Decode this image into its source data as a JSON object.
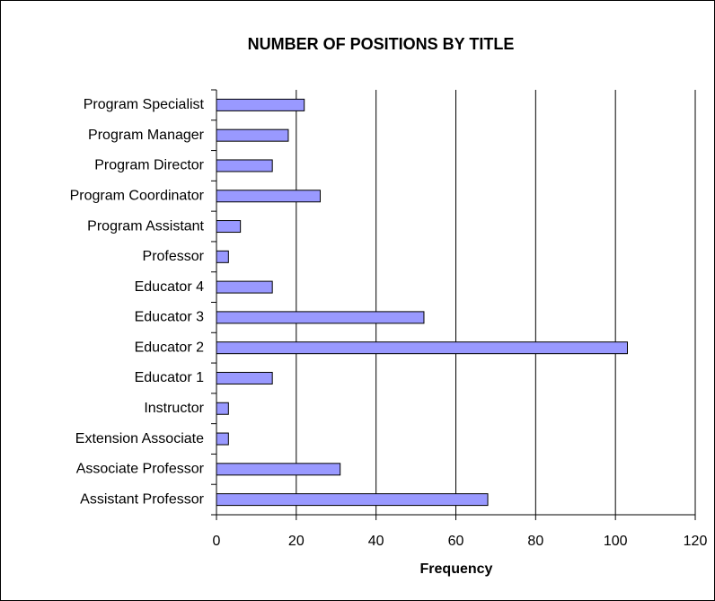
{
  "chart_data": {
    "type": "hbar",
    "title": "NUMBER OF POSITIONS BY TITLE",
    "x_label": "Frequency",
    "categories": [
      "Program Specialist",
      "Program Manager",
      "Program Director",
      "Program Coordinator",
      "Program Assistant",
      "Professor",
      "Educator 4",
      "Educator 3",
      "Educator 2",
      "Educator 1",
      "Instructor",
      "Extension Associate",
      "Associate Professor",
      "Assistant Professor"
    ],
    "values": [
      22,
      18,
      14,
      26,
      6,
      3,
      14,
      52,
      103,
      14,
      3,
      3,
      31,
      68
    ],
    "color": "#9999ff",
    "xlim": [
      0,
      120
    ],
    "xticks": [
      0,
      20,
      40,
      60,
      80,
      100,
      120
    ],
    "grid": true
  }
}
